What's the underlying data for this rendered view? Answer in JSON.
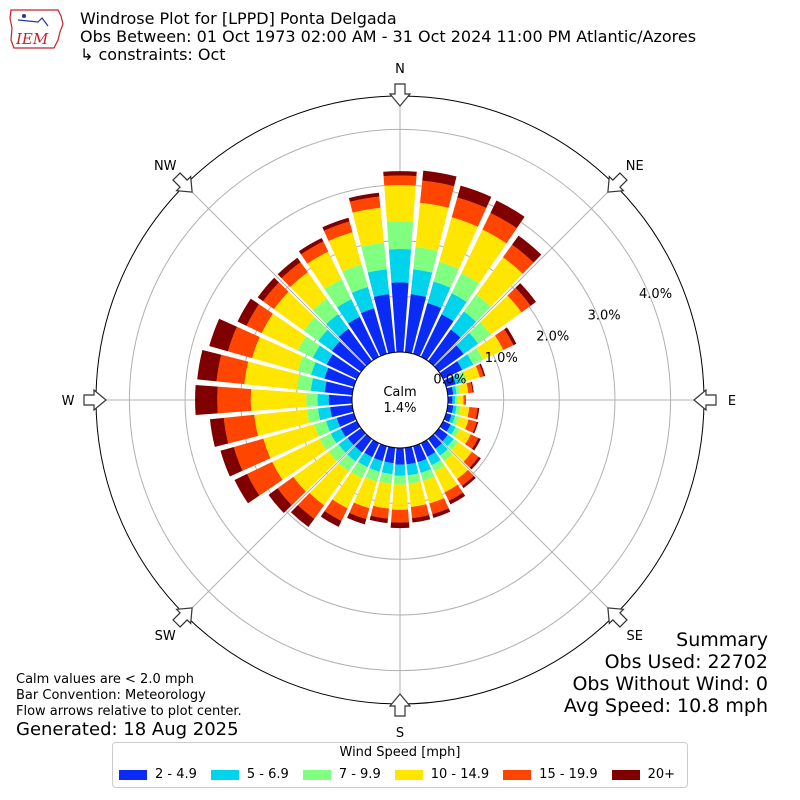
{
  "logo": {
    "text": "IEM"
  },
  "header": {
    "title": "Windrose Plot for [LPPD] Ponta Delgada",
    "period": "Obs Between: 01 Oct 1973 02:00 AM - 31 Oct 2024 11:00 PM Atlantic/Azores",
    "constraints": "↳ constraints: Oct"
  },
  "notes": {
    "line1": "Calm values are < 2.0 mph",
    "line2": "Bar Convention: Meteorology",
    "line3": "Flow arrows relative to plot center."
  },
  "generated": "Generated: 18 Aug 2025",
  "summary": {
    "title": "Summary",
    "obs_used": "Obs Used: 22702",
    "obs_without_wind": "Obs Without Wind: 0",
    "avg_speed": "Avg Speed: 10.8 mph"
  },
  "legend": {
    "title": "Wind Speed [mph]",
    "items": [
      {
        "label": "2 - 4.9",
        "color": "#0a2af5"
      },
      {
        "label": "5 - 6.9",
        "color": "#00d4ec"
      },
      {
        "label": "7 - 9.9",
        "color": "#80ff80"
      },
      {
        "label": "10 - 14.9",
        "color": "#ffe600"
      },
      {
        "label": "15 - 19.9",
        "color": "#ff4500"
      },
      {
        "label": "20+",
        "color": "#800000"
      }
    ]
  },
  "chart_data": {
    "type": "bar",
    "title": "Windrose Plot for [LPPD] Ponta Delgada",
    "subtitle": "Obs Between: 01 Oct 1973 02:00 AM - 31 Oct 2024 11:00 PM Atlantic/Azores",
    "center_label": "Calm",
    "center_value": "1.4%",
    "calm_percent": 1.4,
    "directions_deg": [
      0,
      10,
      20,
      30,
      40,
      50,
      60,
      70,
      80,
      90,
      100,
      110,
      120,
      130,
      140,
      150,
      160,
      170,
      180,
      190,
      200,
      210,
      220,
      230,
      240,
      250,
      260,
      270,
      280,
      290,
      300,
      310,
      320,
      330,
      340,
      350
    ],
    "compass_labels": [
      "N",
      "NE",
      "E",
      "SE",
      "S",
      "SW",
      "W",
      "NW"
    ],
    "radial_ticks": [
      0.0,
      1.0,
      2.0,
      3.0,
      4.0
    ],
    "radial_tick_labels": [
      "0.0%",
      "1.0%",
      "2.0%",
      "3.0%",
      "4.0%"
    ],
    "rlim": [
      0,
      4.6
    ],
    "speed_bins": [
      "2 - 4.9",
      "5 - 6.9",
      "7 - 9.9",
      "10 - 14.9",
      "15 - 19.9",
      "20+"
    ],
    "series": [
      {
        "name": "2 - 4.9",
        "values": [
          1.25,
          1.05,
          0.95,
          0.85,
          0.7,
          0.55,
          0.38,
          0.18,
          0.1,
          0.08,
          0.1,
          0.1,
          0.15,
          0.2,
          0.22,
          0.27,
          0.3,
          0.3,
          0.3,
          0.28,
          0.28,
          0.28,
          0.3,
          0.3,
          0.32,
          0.32,
          0.4,
          0.42,
          0.5,
          0.55,
          0.6,
          0.65,
          0.72,
          0.8,
          0.85,
          1.05
        ]
      },
      {
        "name": "5 - 6.9",
        "values": [
          0.6,
          0.45,
          0.4,
          0.42,
          0.4,
          0.32,
          0.22,
          0.1,
          0.06,
          0.05,
          0.06,
          0.07,
          0.1,
          0.13,
          0.15,
          0.17,
          0.2,
          0.2,
          0.2,
          0.2,
          0.2,
          0.2,
          0.2,
          0.2,
          0.2,
          0.2,
          0.22,
          0.2,
          0.25,
          0.25,
          0.28,
          0.3,
          0.32,
          0.35,
          0.4,
          0.45
        ]
      },
      {
        "name": "7 - 9.9",
        "values": [
          0.5,
          0.4,
          0.37,
          0.4,
          0.38,
          0.28,
          0.2,
          0.1,
          0.06,
          0.05,
          0.07,
          0.07,
          0.08,
          0.1,
          0.12,
          0.12,
          0.15,
          0.15,
          0.16,
          0.17,
          0.18,
          0.22,
          0.22,
          0.22,
          0.22,
          0.22,
          0.2,
          0.2,
          0.25,
          0.25,
          0.3,
          0.32,
          0.35,
          0.4,
          0.42,
          0.48
        ]
      },
      {
        "name": "10 - 14.9",
        "values": [
          0.65,
          0.8,
          0.83,
          0.87,
          0.82,
          0.68,
          0.4,
          0.25,
          0.15,
          0.1,
          0.16,
          0.18,
          0.22,
          0.3,
          0.4,
          0.42,
          0.42,
          0.42,
          0.45,
          0.45,
          0.5,
          0.6,
          0.75,
          0.78,
          0.95,
          0.95,
          0.95,
          1.0,
          0.95,
          0.85,
          0.72,
          0.66,
          0.58,
          0.55,
          0.6,
          0.63
        ]
      },
      {
        "name": "15 - 19.9",
        "values": [
          0.17,
          0.4,
          0.37,
          0.33,
          0.28,
          0.2,
          0.2,
          0.07,
          0.08,
          0.03,
          0.15,
          0.15,
          0.15,
          0.15,
          0.15,
          0.17,
          0.2,
          0.2,
          0.23,
          0.18,
          0.2,
          0.25,
          0.3,
          0.35,
          0.5,
          0.55,
          0.55,
          0.6,
          0.5,
          0.45,
          0.3,
          0.24,
          0.22,
          0.2,
          0.2,
          0.2
        ]
      },
      {
        "name": "20+",
        "values": [
          0.08,
          0.18,
          0.22,
          0.25,
          0.2,
          0.12,
          0.06,
          0.03,
          0.02,
          0.01,
          0.03,
          0.03,
          0.05,
          0.05,
          0.05,
          0.07,
          0.07,
          0.08,
          0.1,
          0.08,
          0.1,
          0.12,
          0.18,
          0.2,
          0.25,
          0.25,
          0.25,
          0.4,
          0.35,
          0.35,
          0.18,
          0.12,
          0.1,
          0.07,
          0.07,
          0.07
        ]
      }
    ],
    "grid": true
  }
}
